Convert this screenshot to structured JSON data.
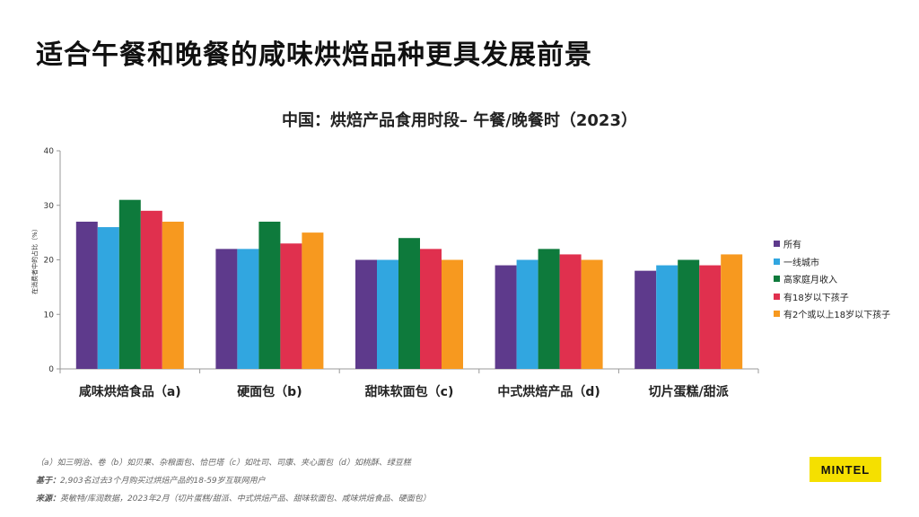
{
  "headline": "适合午餐和晚餐的咸味烘焙品种更具发展前景",
  "chart_data": {
    "type": "bar",
    "title": "中国：烘焙产品食用时段– 午餐/晚餐时（2023）",
    "ylabel": "在消费者中的占比（%）",
    "xlabel": "",
    "ylim": [
      0,
      40
    ],
    "yticks": [
      0,
      10,
      20,
      30,
      40
    ],
    "grid": false,
    "legend_position": "right",
    "categories": [
      "咸味烘焙食品（a)",
      "硬面包（b)",
      "甜味软面包（c)",
      "中式烘焙产品（d)",
      "切片蛋糕/甜派"
    ],
    "series": [
      {
        "name": "所有",
        "color": "#5e3a8c",
        "values": [
          27,
          22,
          20,
          19,
          18
        ]
      },
      {
        "name": "一线城市",
        "color": "#31a6e0",
        "values": [
          26,
          22,
          20,
          20,
          19
        ]
      },
      {
        "name": "高家庭月收入",
        "color": "#0e7a3c",
        "values": [
          31,
          27,
          24,
          22,
          20
        ]
      },
      {
        "name": "有18岁以下孩子",
        "color": "#e0304e",
        "values": [
          29,
          23,
          22,
          21,
          19
        ]
      },
      {
        "name": "有2个或以上18岁以下孩子",
        "color": "#f7991f",
        "values": [
          27,
          25,
          20,
          20,
          21
        ]
      }
    ]
  },
  "footnotes": {
    "examples": "（a）如三明治、卷（b）如贝果、杂粮面包、恰巴塔（c）如吐司、司康、夹心面包（d）如桃酥、绿豆糕",
    "base_label": "基于：",
    "base_text": "2,903名过去3个月购买过烘焙产品的18-59岁互联网用户",
    "source_label": "来源：",
    "source_text": "英敏特/库润数据，2023年2月（切片蛋糕/甜派、中式烘焙产品、甜味软面包、咸味烘焙食品、硬面包）"
  },
  "logo": "MINTEL"
}
